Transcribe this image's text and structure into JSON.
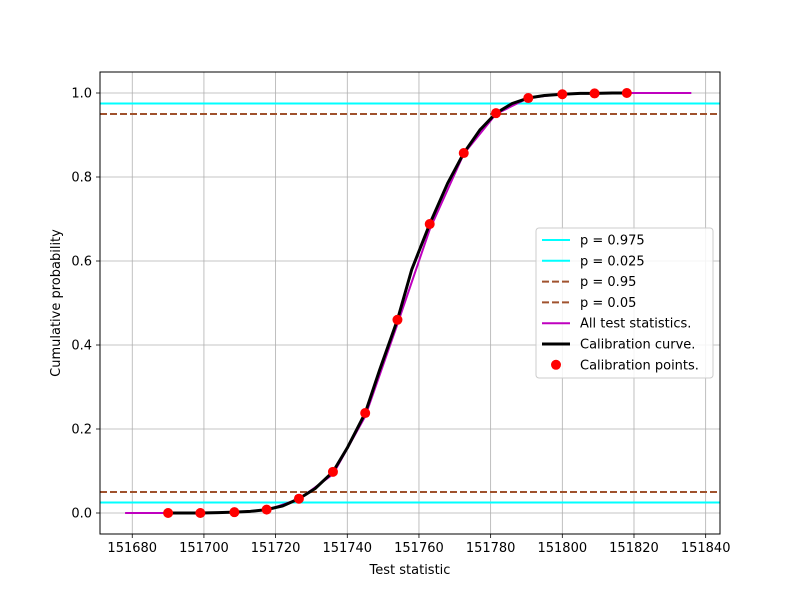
{
  "chart_data": {
    "type": "line",
    "xlabel": "Test statistic",
    "ylabel": "Cumulative probability",
    "xlim": [
      151671,
      151844
    ],
    "ylim": [
      -0.05,
      1.05
    ],
    "xticks": [
      151680,
      151700,
      151720,
      151740,
      151760,
      151780,
      151800,
      151820,
      151840
    ],
    "xtick_labels": [
      "151680",
      "151700",
      "151720",
      "151740",
      "151760",
      "151780",
      "151800",
      "151820",
      "151840"
    ],
    "yticks": [
      0.0,
      0.2,
      0.4,
      0.6,
      0.8,
      1.0
    ],
    "ytick_labels": [
      "0.0",
      "0.2",
      "0.4",
      "0.6",
      "0.8",
      "1.0"
    ],
    "grid": true,
    "legend_position": "center-right",
    "hlines": [
      {
        "name": "p = 0.975",
        "y": 0.975,
        "color": "#00ffff",
        "style": "solid"
      },
      {
        "name": "p = 0.025",
        "y": 0.025,
        "color": "#00ffff",
        "style": "solid"
      },
      {
        "name": "p = 0.95",
        "y": 0.95,
        "color": "#a0522d",
        "style": "dashed"
      },
      {
        "name": "p = 0.05",
        "y": 0.05,
        "color": "#a0522d",
        "style": "dashed"
      }
    ],
    "series": [
      {
        "name": "All test statistics.",
        "color": "#bf00bf",
        "style": "line",
        "x": [
          151678,
          151690,
          151699,
          151708.5,
          151717.5,
          151726.5,
          151736,
          151745,
          151754,
          151763,
          151772.5,
          151781.5,
          151790.5,
          151800,
          151809,
          151818,
          151836
        ],
        "y": [
          0.0,
          0.0,
          0.0,
          0.002,
          0.007,
          0.033,
          0.092,
          0.23,
          0.45,
          0.675,
          0.855,
          0.95,
          0.988,
          0.998,
          1.0,
          1.0,
          1.0
        ]
      },
      {
        "name": "Calibration curve.",
        "color": "#000000",
        "style": "thick-line",
        "x": [
          151690,
          151695,
          151699,
          151704,
          151708.5,
          151713,
          151717.5,
          151722,
          151726.5,
          151731,
          151736,
          151740,
          151745,
          151749,
          151754,
          151758,
          151763,
          151768,
          151772.5,
          151777,
          151781.5,
          151786,
          151790.5,
          151795,
          151800,
          151805,
          151809,
          151814,
          151818
        ],
        "y": [
          0.0,
          0.0,
          0.0,
          0.001,
          0.002,
          0.004,
          0.008,
          0.017,
          0.034,
          0.058,
          0.098,
          0.155,
          0.238,
          0.34,
          0.46,
          0.58,
          0.688,
          0.785,
          0.857,
          0.912,
          0.952,
          0.975,
          0.988,
          0.994,
          0.997,
          0.999,
          0.999,
          1.0,
          1.0
        ]
      },
      {
        "name": "Calibration points.",
        "color": "#ff0000",
        "style": "markers",
        "x": [
          151690,
          151699,
          151708.5,
          151717.5,
          151726.5,
          151736,
          151745,
          151754,
          151763,
          151772.5,
          151781.5,
          151790.5,
          151800,
          151809,
          151818
        ],
        "y": [
          0.0,
          0.0,
          0.002,
          0.008,
          0.034,
          0.098,
          0.238,
          0.46,
          0.688,
          0.857,
          0.952,
          0.988,
          0.997,
          0.999,
          1.0
        ]
      }
    ],
    "legend": [
      "p = 0.975",
      "p = 0.025",
      "p = 0.95",
      "p = 0.05",
      "All test statistics.",
      "Calibration curve.",
      "Calibration points."
    ]
  }
}
